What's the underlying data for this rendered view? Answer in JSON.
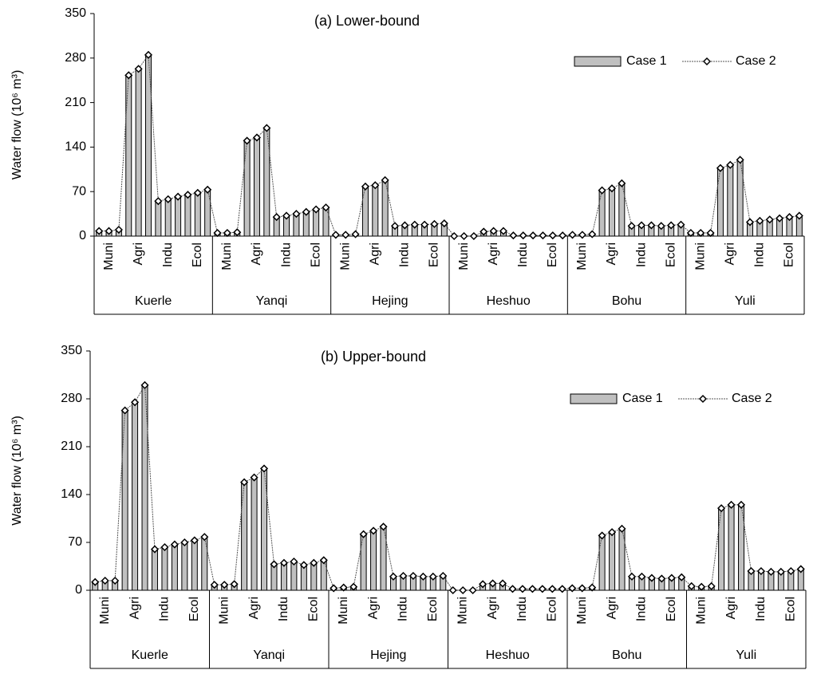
{
  "chart_data": [
    {
      "type": "bar",
      "title": "(a) Lower-bound",
      "ylabel": "Water flow  (10⁶ m³)",
      "categories": [
        null,
        "Muni",
        null,
        null,
        "Agri",
        null,
        null,
        "Indu",
        null,
        null,
        "Ecol",
        null,
        null,
        "Muni",
        null,
        null,
        "Agri",
        null,
        null,
        "Indu",
        null,
        null,
        "Ecol",
        null,
        null,
        "Muni",
        null,
        null,
        "Agri",
        null,
        null,
        "Indu",
        null,
        null,
        "Ecol",
        null,
        null,
        "Muni",
        null,
        null,
        "Agri",
        null,
        null,
        "Indu",
        null,
        null,
        "Ecol",
        null,
        null,
        "Muni",
        null,
        null,
        "Agri",
        null,
        null,
        "Indu",
        null,
        null,
        "Ecol",
        null,
        null,
        "Muni",
        null,
        null,
        "Agri",
        null,
        null,
        "Indu",
        null,
        null,
        "Ecol",
        null
      ],
      "groups": [
        "Kuerle",
        "Yanqi",
        "Hejing",
        "Heshuo",
        "Bohu",
        "Yuli"
      ],
      "series": [
        {
          "name": "Case 1",
          "color": "#c0c0c0",
          "values": [
            8,
            8,
            10,
            253,
            263,
            285,
            55,
            58,
            62,
            65,
            68,
            73,
            5,
            5,
            6,
            150,
            155,
            170,
            30,
            32,
            35,
            38,
            42,
            45,
            2,
            2,
            3,
            78,
            80,
            88,
            16,
            17,
            18,
            18,
            19,
            20,
            0,
            0,
            0,
            7,
            8,
            8,
            1,
            1,
            1,
            1,
            1,
            1,
            2,
            2,
            3,
            72,
            75,
            83,
            16,
            17,
            17,
            16,
            17,
            18,
            5,
            5,
            5,
            107,
            112,
            120,
            22,
            24,
            26,
            28,
            30,
            32
          ]
        },
        {
          "name": "Case 2",
          "color": "#555555",
          "values": [
            8,
            8,
            10,
            253,
            263,
            285,
            55,
            58,
            62,
            65,
            68,
            73,
            5,
            5,
            6,
            150,
            155,
            170,
            30,
            32,
            35,
            38,
            42,
            45,
            2,
            2,
            3,
            78,
            80,
            88,
            16,
            17,
            18,
            18,
            19,
            20,
            0,
            0,
            0,
            7,
            8,
            8,
            1,
            1,
            1,
            1,
            1,
            1,
            2,
            2,
            3,
            72,
            75,
            83,
            16,
            17,
            17,
            16,
            17,
            18,
            5,
            5,
            5,
            107,
            112,
            120,
            22,
            24,
            26,
            28,
            30,
            32
          ]
        }
      ],
      "ylim": [
        0,
        350
      ],
      "yticks": [
        0,
        70,
        140,
        210,
        280,
        350
      ],
      "legend": "upper right"
    },
    {
      "type": "bar",
      "title": "(b) Upper-bound",
      "ylabel": "Water flow  (10⁶ m³)",
      "categories": [
        null,
        "Muni",
        null,
        null,
        "Agri",
        null,
        null,
        "Indu",
        null,
        null,
        "Ecol",
        null,
        null,
        "Muni",
        null,
        null,
        "Agri",
        null,
        null,
        "Indu",
        null,
        null,
        "Ecol",
        null,
        null,
        "Muni",
        null,
        null,
        "Agri",
        null,
        null,
        "Indu",
        null,
        null,
        "Ecol",
        null,
        null,
        "Muni",
        null,
        null,
        "Agri",
        null,
        null,
        "Indu",
        null,
        null,
        "Ecol",
        null,
        null,
        "Muni",
        null,
        null,
        "Agri",
        null,
        null,
        "Indu",
        null,
        null,
        "Ecol",
        null,
        null,
        "Muni",
        null,
        null,
        "Agri",
        null,
        null,
        "Indu",
        null,
        null,
        "Ecol",
        null
      ],
      "groups": [
        "Kuerle",
        "Yanqi",
        "Hejing",
        "Heshuo",
        "Bohu",
        "Yuli"
      ],
      "series": [
        {
          "name": "Case 1",
          "color": "#c0c0c0",
          "values": [
            12,
            14,
            14,
            263,
            275,
            300,
            60,
            63,
            67,
            70,
            73,
            78,
            8,
            8,
            9,
            158,
            165,
            178,
            38,
            40,
            42,
            37,
            40,
            44,
            3,
            4,
            5,
            82,
            87,
            93,
            20,
            21,
            21,
            20,
            20,
            21,
            0,
            0,
            0,
            9,
            10,
            10,
            2,
            2,
            2,
            2,
            2,
            2,
            3,
            3,
            4,
            80,
            85,
            90,
            20,
            20,
            18,
            17,
            18,
            19,
            6,
            5,
            6,
            120,
            125,
            125,
            28,
            28,
            27,
            27,
            28,
            31
          ]
        },
        {
          "name": "Case 2",
          "color": "#555555",
          "values": [
            12,
            14,
            14,
            263,
            275,
            300,
            60,
            63,
            67,
            70,
            73,
            78,
            8,
            8,
            9,
            158,
            165,
            178,
            38,
            40,
            42,
            37,
            40,
            44,
            3,
            4,
            5,
            82,
            87,
            93,
            20,
            21,
            21,
            20,
            20,
            21,
            0,
            0,
            0,
            9,
            10,
            10,
            2,
            2,
            2,
            2,
            2,
            2,
            3,
            3,
            4,
            80,
            85,
            90,
            20,
            20,
            18,
            17,
            18,
            19,
            6,
            5,
            6,
            120,
            125,
            125,
            28,
            28,
            27,
            27,
            28,
            31
          ]
        }
      ],
      "ylim": [
        0,
        350
      ],
      "yticks": [
        0,
        70,
        140,
        210,
        280,
        350
      ],
      "legend": "upper right"
    }
  ]
}
